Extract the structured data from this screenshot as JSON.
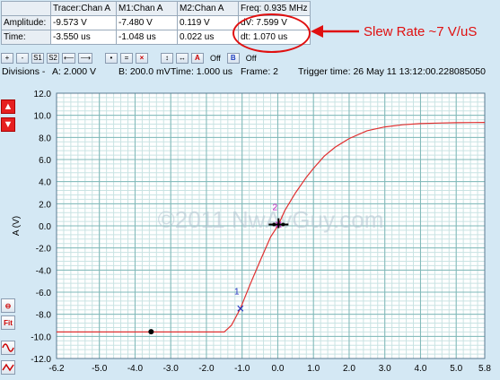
{
  "measurements": {
    "headers": [
      "Tracer:Chan A",
      "M1:Chan A",
      "M2:Chan A",
      "Freq: 0.935 MHz"
    ],
    "rows": [
      {
        "label": "Amplitude:",
        "tracer": "-9.573 V",
        "m1": "-7.480 V",
        "m2": "0.119 V",
        "delta": "dV: 7.599 V"
      },
      {
        "label": "Time:",
        "tracer": "-3.550 us",
        "m1": "-1.048 us",
        "m2": "0.022 us",
        "delta": "dt:  1.070 us"
      }
    ]
  },
  "annotation": {
    "text": "Slew Rate ~7 V/uS",
    "color": "#e01010"
  },
  "toolbar": {
    "buttons": [
      "+",
      "-",
      "S1",
      "S2",
      "⟵",
      "⟶",
      "•",
      "=",
      "×",
      "↕",
      "↔"
    ],
    "a_label": "A",
    "a_off": "Off",
    "b_label": "B",
    "b_off": "Off"
  },
  "status": {
    "divisions": "Divisions -",
    "a": "A: 2.000 V",
    "b": "B: 200.0 mV",
    "time": "Time: 1.000 us",
    "frame": "Frame: 2",
    "trigger": "Trigger time: 26 May 11 13:12:00.228085050"
  },
  "side_buttons": {
    "fit_label": "Fit"
  },
  "watermark": "©2011 NwAvGuy.com",
  "chart_data": {
    "type": "line",
    "xlabel": "",
    "ylabel": "A (V)",
    "xlim": [
      -6.2,
      5.8
    ],
    "ylim": [
      -12,
      12
    ],
    "x_ticks": [
      "-6.2",
      "-5.0",
      "-4.0",
      "-3.0",
      "-2.0",
      "-1.0",
      "0.0",
      "1.0",
      "2.0",
      "3.0",
      "4.0",
      "5.0",
      "5.8"
    ],
    "y_ticks": [
      "12.0",
      "10.0",
      "8.0",
      "6.0",
      "4.0",
      "2.0",
      "0.0",
      "-2.0",
      "-4.0",
      "-6.0",
      "-8.0",
      "-10.0",
      "-12.0"
    ],
    "grid": true,
    "series": [
      {
        "color": "#e03030",
        "x": [
          -6.2,
          -5.0,
          -4.0,
          -3.0,
          -2.0,
          -1.5,
          -1.3,
          -1.048,
          -0.8,
          -0.5,
          -0.2,
          0.0,
          0.022,
          0.2,
          0.5,
          0.8,
          1.0,
          1.3,
          1.6,
          2.0,
          2.5,
          3.0,
          3.5,
          4.0,
          4.5,
          5.0,
          5.5,
          5.8
        ],
        "y": [
          -9.6,
          -9.6,
          -9.6,
          -9.6,
          -9.6,
          -9.6,
          -9.0,
          -7.48,
          -5.5,
          -3.2,
          -1.0,
          0.0,
          0.119,
          1.4,
          3.0,
          4.4,
          5.2,
          6.3,
          7.1,
          7.9,
          8.6,
          8.95,
          9.15,
          9.25,
          9.3,
          9.33,
          9.35,
          9.36
        ]
      }
    ],
    "markers": [
      {
        "label": "1",
        "x": -1.048,
        "y": -7.48,
        "color": "#2030c0"
      },
      {
        "label": "2",
        "x": 0.022,
        "y": 0.119,
        "color": "#c020c0"
      }
    ],
    "tracer": {
      "x": -3.55,
      "y": -9.573
    },
    "cursor": {
      "x": 0.022,
      "y": 0.119
    }
  }
}
